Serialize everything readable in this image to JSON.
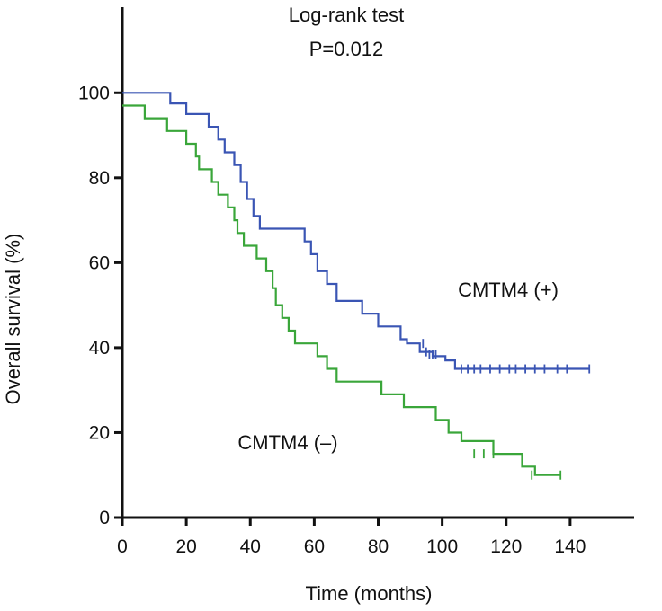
{
  "chart_data": {
    "type": "line",
    "title": "Log-rank test",
    "subtitle": "P=0.012",
    "xlabel": "Time (months)",
    "ylabel": "Overall survival (%)",
    "xlim": [
      0,
      160
    ],
    "ylim": [
      0,
      110
    ],
    "xticks": [
      0,
      20,
      40,
      60,
      80,
      100,
      120,
      140
    ],
    "yticks": [
      0,
      20,
      40,
      60,
      80,
      100
    ],
    "grid": false,
    "legend": "none",
    "step": true,
    "series": [
      {
        "name": "CMTM4 (+)",
        "color": "#3a55b4",
        "points": [
          [
            0,
            100
          ],
          [
            15,
            100
          ],
          [
            15,
            97.5
          ],
          [
            20,
            97.5
          ],
          [
            20,
            95
          ],
          [
            27,
            95
          ],
          [
            27,
            92
          ],
          [
            30,
            92
          ],
          [
            30,
            89
          ],
          [
            32,
            89
          ],
          [
            32,
            86
          ],
          [
            35,
            86
          ],
          [
            35,
            83
          ],
          [
            37,
            83
          ],
          [
            37,
            79
          ],
          [
            39,
            79
          ],
          [
            39,
            75
          ],
          [
            41,
            75
          ],
          [
            41,
            71
          ],
          [
            43,
            71
          ],
          [
            43,
            68
          ],
          [
            57,
            68
          ],
          [
            57,
            65
          ],
          [
            59,
            65
          ],
          [
            59,
            62
          ],
          [
            61,
            62
          ],
          [
            61,
            58
          ],
          [
            64,
            58
          ],
          [
            64,
            55
          ],
          [
            67,
            55
          ],
          [
            67,
            51
          ],
          [
            75,
            51
          ],
          [
            75,
            48
          ],
          [
            80,
            48
          ],
          [
            80,
            45
          ],
          [
            87,
            45
          ],
          [
            87,
            42
          ],
          [
            89,
            42
          ],
          [
            89,
            41
          ],
          [
            93,
            41
          ],
          [
            93,
            39
          ],
          [
            97,
            39
          ],
          [
            97,
            38
          ],
          [
            101,
            38
          ],
          [
            101,
            37
          ],
          [
            104,
            37
          ],
          [
            104,
            35
          ],
          [
            146,
            35
          ]
        ],
        "censored": [
          [
            94,
            41
          ],
          [
            95,
            39
          ],
          [
            96,
            38.5
          ],
          [
            97,
            38.5
          ],
          [
            98,
            38.5
          ],
          [
            106,
            35
          ],
          [
            108,
            35
          ],
          [
            110,
            35
          ],
          [
            112,
            35
          ],
          [
            115,
            35
          ],
          [
            118,
            35
          ],
          [
            121,
            35
          ],
          [
            123,
            35
          ],
          [
            126,
            35
          ],
          [
            129,
            35
          ],
          [
            132,
            35
          ],
          [
            136,
            35
          ],
          [
            139,
            35
          ],
          [
            146,
            35
          ]
        ]
      },
      {
        "name": "CMTM4 (–)",
        "color": "#3aa63a",
        "points": [
          [
            0,
            97
          ],
          [
            7,
            97
          ],
          [
            7,
            94
          ],
          [
            14,
            94
          ],
          [
            14,
            91
          ],
          [
            20,
            91
          ],
          [
            20,
            88
          ],
          [
            23,
            88
          ],
          [
            23,
            85
          ],
          [
            24,
            85
          ],
          [
            24,
            82
          ],
          [
            28,
            82
          ],
          [
            28,
            79
          ],
          [
            30,
            79
          ],
          [
            30,
            76
          ],
          [
            33,
            76
          ],
          [
            33,
            73
          ],
          [
            35,
            73
          ],
          [
            35,
            70
          ],
          [
            36,
            70
          ],
          [
            36,
            67
          ],
          [
            38,
            67
          ],
          [
            38,
            64
          ],
          [
            42,
            64
          ],
          [
            42,
            61
          ],
          [
            45,
            61
          ],
          [
            45,
            58
          ],
          [
            47,
            58
          ],
          [
            47,
            54
          ],
          [
            48,
            54
          ],
          [
            48,
            50
          ],
          [
            50,
            50
          ],
          [
            50,
            47
          ],
          [
            52,
            47
          ],
          [
            52,
            44
          ],
          [
            54,
            44
          ],
          [
            54,
            41
          ],
          [
            61,
            41
          ],
          [
            61,
            38
          ],
          [
            64,
            38
          ],
          [
            64,
            35
          ],
          [
            67,
            35
          ],
          [
            67,
            32
          ],
          [
            81,
            32
          ],
          [
            81,
            29
          ],
          [
            88,
            29
          ],
          [
            88,
            26
          ],
          [
            98,
            26
          ],
          [
            98,
            23
          ],
          [
            102,
            23
          ],
          [
            102,
            20
          ],
          [
            106,
            20
          ],
          [
            106,
            18
          ],
          [
            116,
            18
          ],
          [
            116,
            15
          ],
          [
            125,
            15
          ],
          [
            125,
            12
          ],
          [
            129,
            12
          ],
          [
            129,
            10
          ],
          [
            137,
            10
          ]
        ],
        "censored": [
          [
            110,
            15
          ],
          [
            113,
            15
          ],
          [
            116,
            15
          ],
          [
            128,
            10
          ],
          [
            137,
            10
          ]
        ]
      }
    ],
    "annotations": [
      "CMTM4 (+)",
      "CMTM4 (–)"
    ]
  }
}
